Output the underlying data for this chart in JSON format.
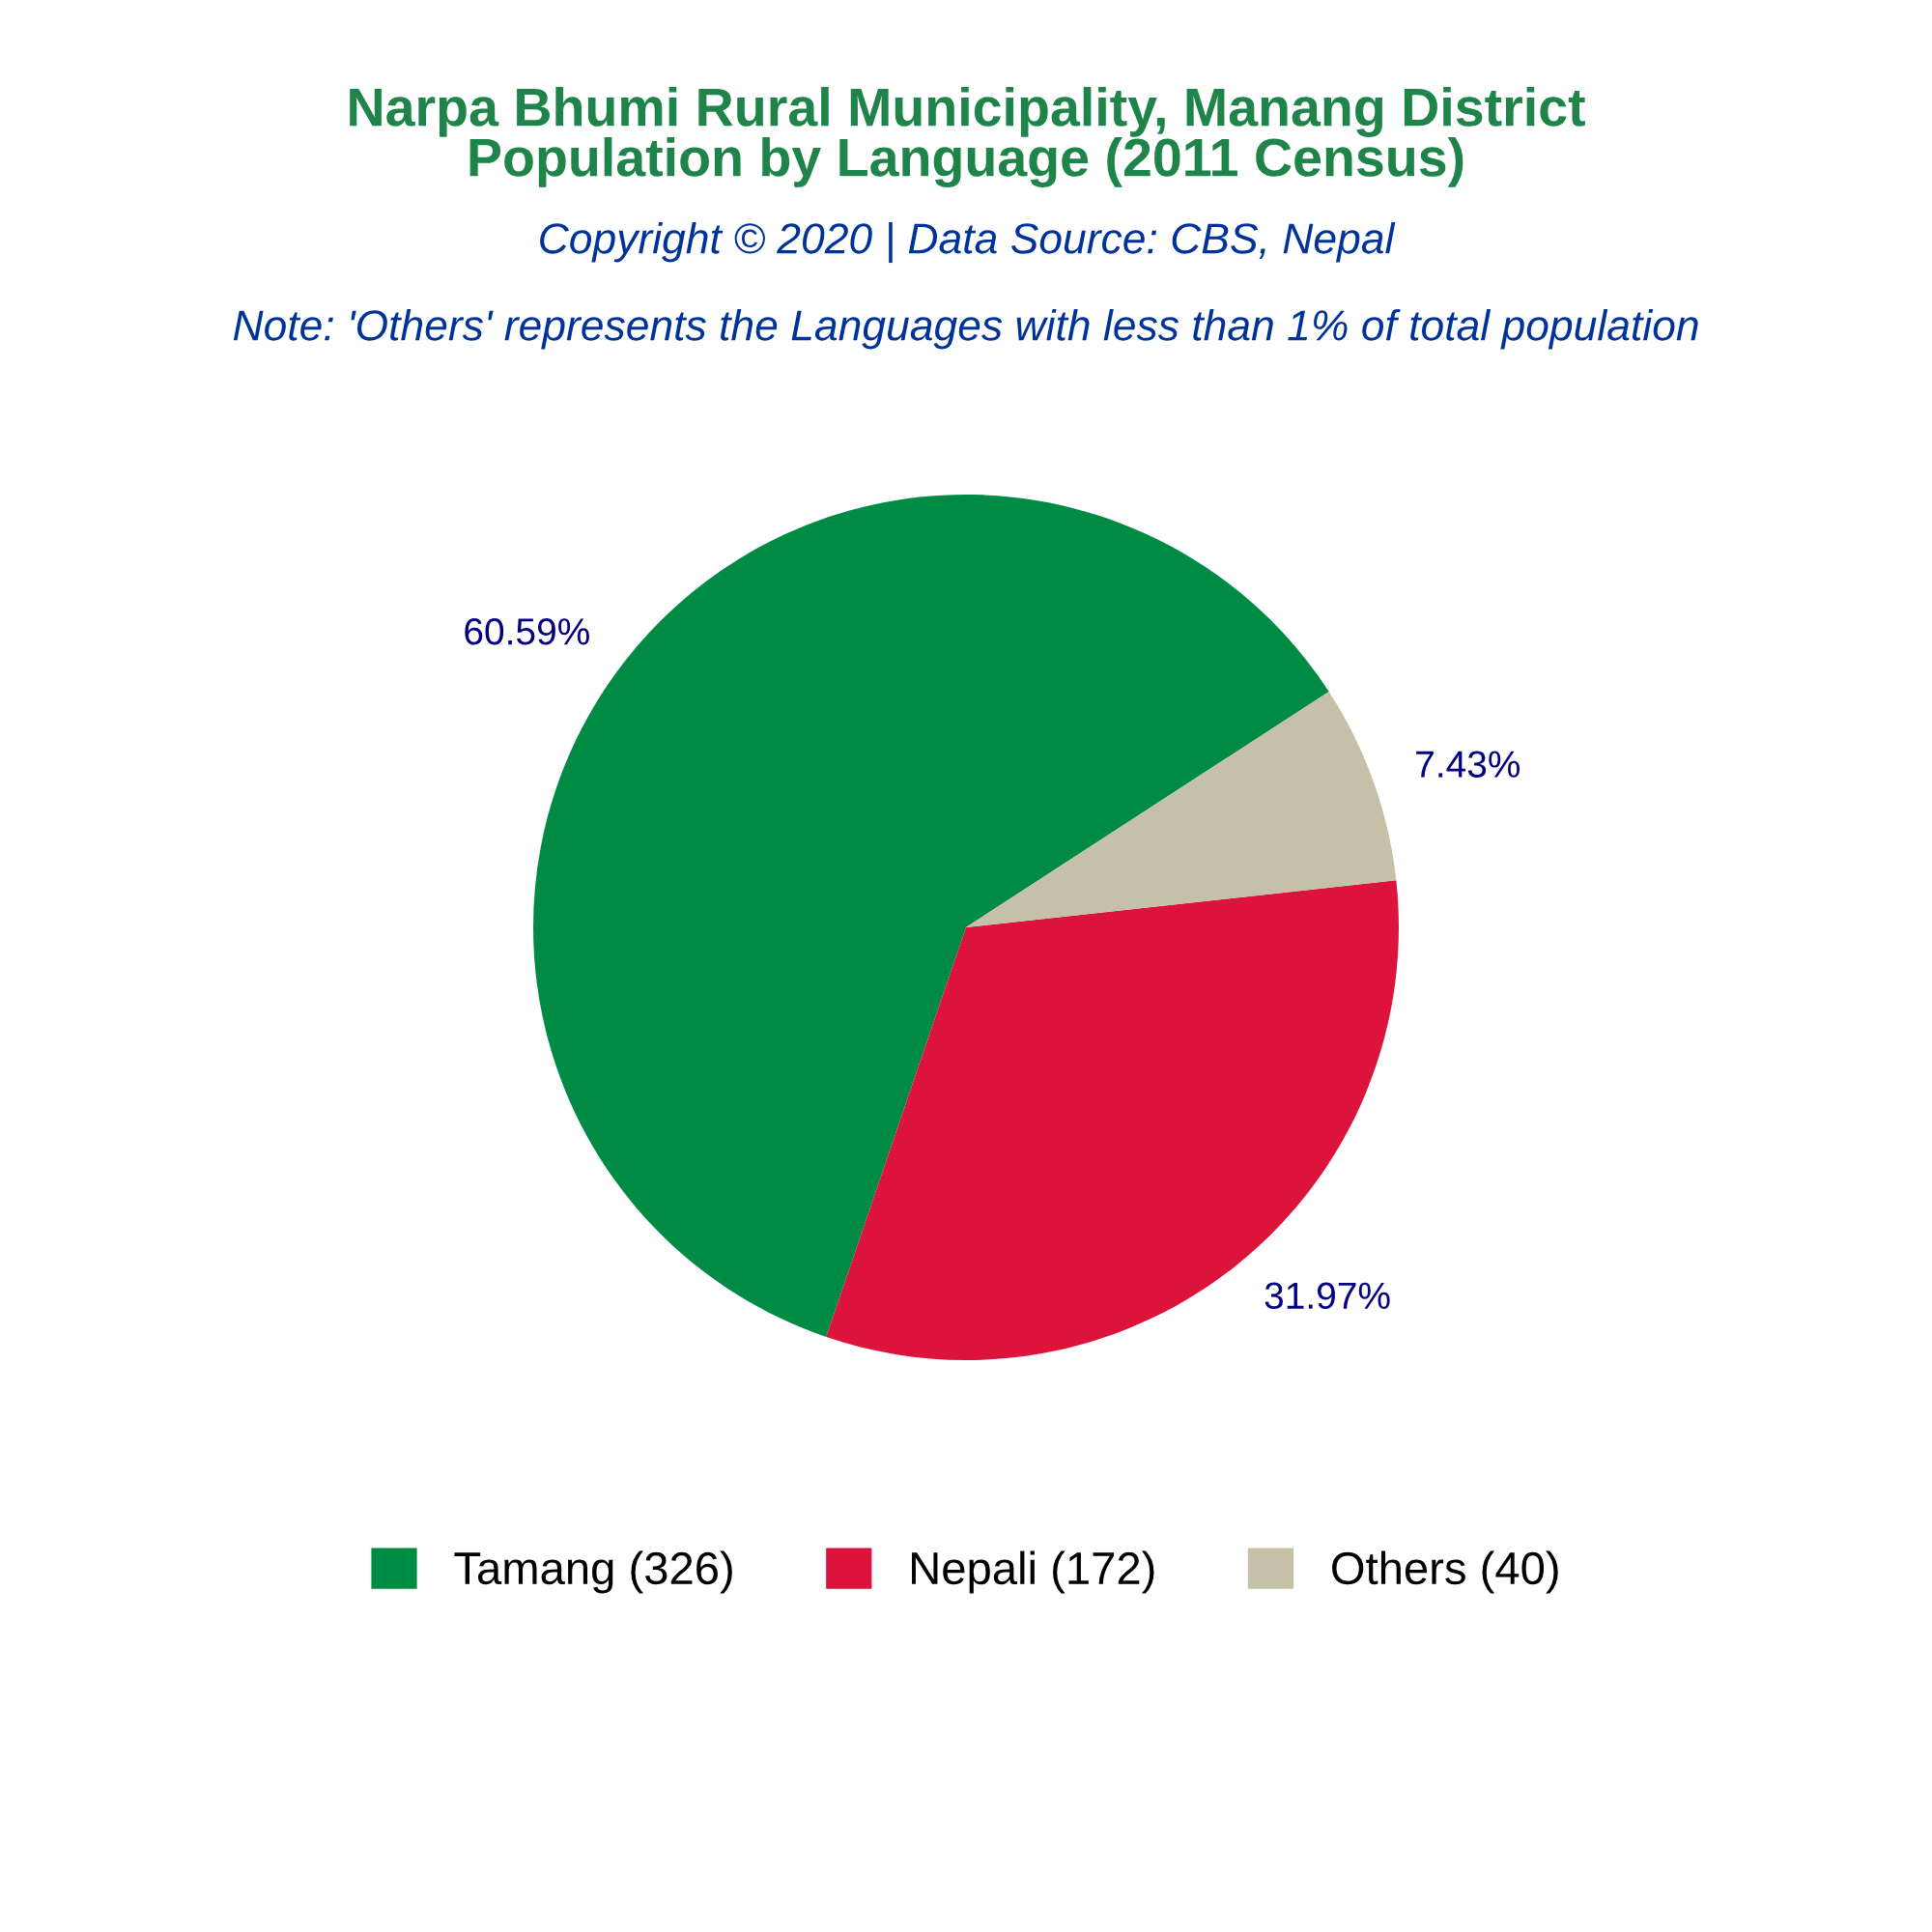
{
  "chart_data": {
    "type": "pie",
    "title": "Narpa Bhumi Rural Municipality, Manang District\nPopulation by Language (2011 Census)",
    "subtitle": "Copyright © 2020 | Data Source: CBS, Nepal",
    "annotations": [
      "Note: 'Others' represents the Languages with less than 1% of total population"
    ],
    "categories": [
      "Tamang (326)",
      "Nepali (172)",
      "Others (40)"
    ],
    "values": [
      60.59,
      31.97,
      7.43
    ],
    "colors": [
      "#008b45",
      "#dc143c",
      "#c5c0a8"
    ],
    "value_labels": [
      "60.59%",
      "31.97%",
      "7.43%"
    ],
    "legend": "bottom"
  }
}
